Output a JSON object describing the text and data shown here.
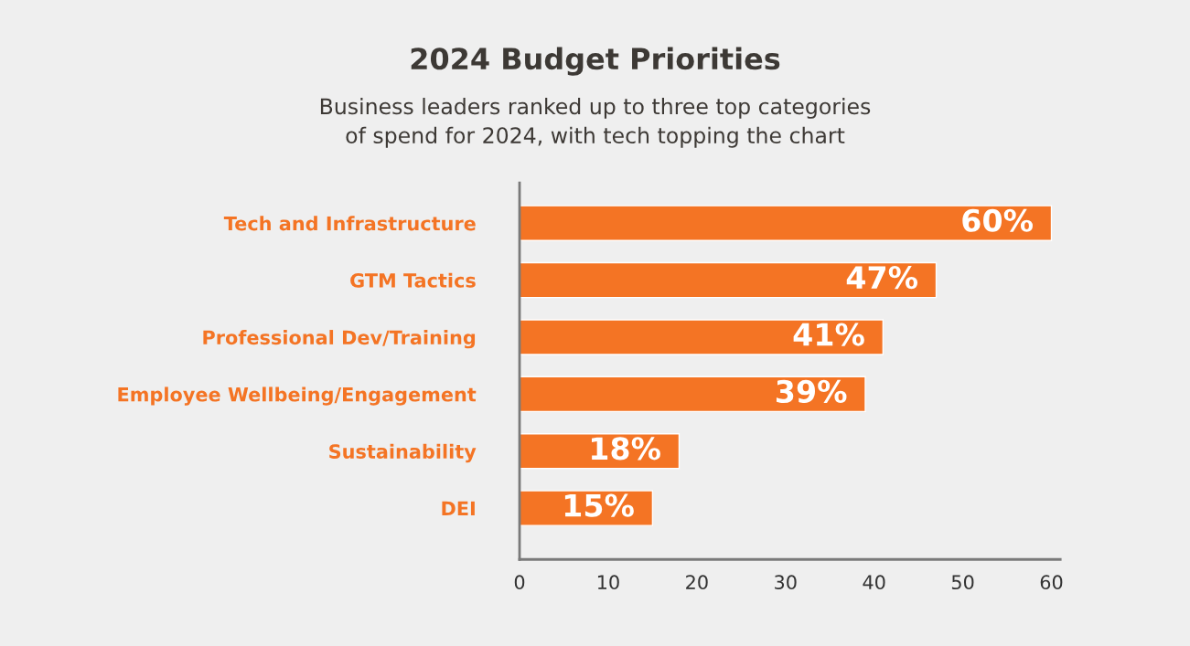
{
  "chart_data": {
    "type": "bar",
    "orientation": "horizontal",
    "title": "2024 Budget Priorities",
    "subtitle": "Business leaders ranked up to three top categories\nof spend for 2024, with tech topping the chart",
    "categories": [
      "Tech and Infrastructure",
      "GTM Tactics",
      "Professional Dev/Training",
      "Employee Wellbeing/Engagement",
      "Sustainability",
      "DEI"
    ],
    "values": [
      60,
      47,
      41,
      39,
      18,
      15
    ],
    "value_labels": [
      "60%",
      "47%",
      "41%",
      "39%",
      "18%",
      "15%"
    ],
    "color": "#f47424",
    "xlim": [
      0,
      61
    ],
    "xticks": [
      0,
      10,
      20,
      30,
      40,
      50,
      60
    ],
    "grid": false,
    "legend": false
  }
}
